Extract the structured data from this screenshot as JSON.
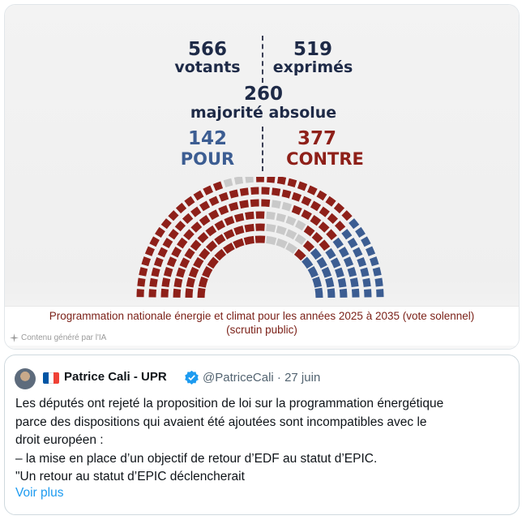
{
  "media": {
    "votants_value": "566",
    "votants_label": "votants",
    "exprimes_value": "519",
    "exprimes_label": "exprimés",
    "majorite_value": "260",
    "majorite_label": "majorité absolue",
    "pour_value": "142",
    "pour_label": "POUR",
    "contre_value": "377",
    "contre_label": "CONTRE",
    "caption_line1": "Programmation nationale énergie et climat pour les années 2025 à 2035 (vote solennel)",
    "caption_line2": "(scrutin public)",
    "ai_tag": "Contenu généré par l'IA",
    "colors": {
      "pour": "#3c5d92",
      "contre": "#8e2019",
      "abstention": "#c9c9c9",
      "dark": "#1e2a47"
    }
  },
  "tweet": {
    "author_name": "Patrice Cali - UPR",
    "handle_date": "@PatriceCali · 27 juin",
    "text_lines": [
      "Les députés ont rejeté la proposition de loi sur la programmation énergétique",
      "parce des dispositions qui avaient été ajoutées sont incompatibles avec le",
      "droit européen :",
      "– la mise en place d’un objectif de retour d’EDF au statut d’EPIC.",
      "\"Un retour au statut d’EPIC déclencherait"
    ],
    "see_more": "Voir plus",
    "flag_icon": "france-flag-icon",
    "verified_icon": "verified-badge-icon",
    "flag_colors": [
      "#0055a4",
      "#ffffff",
      "#ef4135"
    ]
  }
}
